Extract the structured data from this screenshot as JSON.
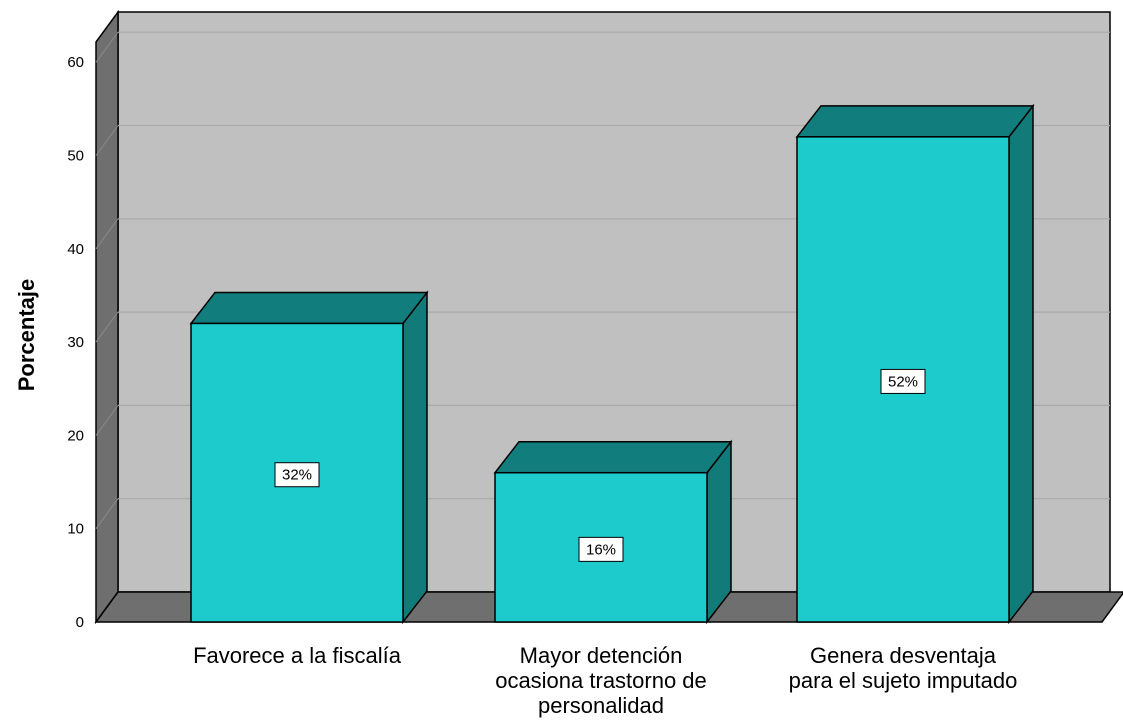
{
  "chart_data": {
    "type": "bar",
    "ylabel": "Porcentaje",
    "xlabel": "",
    "ylim": [
      0,
      60
    ],
    "yticks": [
      "0",
      "10",
      "20",
      "30",
      "40",
      "50",
      "60"
    ],
    "categories": [
      [
        "Favorece a la fiscalía"
      ],
      [
        "Mayor detención",
        "ocasiona trastorno de",
        "personalidad"
      ],
      [
        "Genera desventaja",
        "para el sujeto imputado"
      ]
    ],
    "values": [
      32,
      16,
      52
    ],
    "data_labels": [
      "32%",
      "16%",
      "52%"
    ],
    "grid": true,
    "legend": "none",
    "three_d": true
  },
  "colors": {
    "bar_front": "#1ecbcc",
    "bar_top": "#117d7c",
    "bar_side": "#127a79",
    "plot_background": "#c0c0c0",
    "back_wall": "#c0c0c0",
    "side_wall": "#6f6f6f",
    "floor": "#6f6f6f",
    "gridline": "#a9a9a9"
  }
}
